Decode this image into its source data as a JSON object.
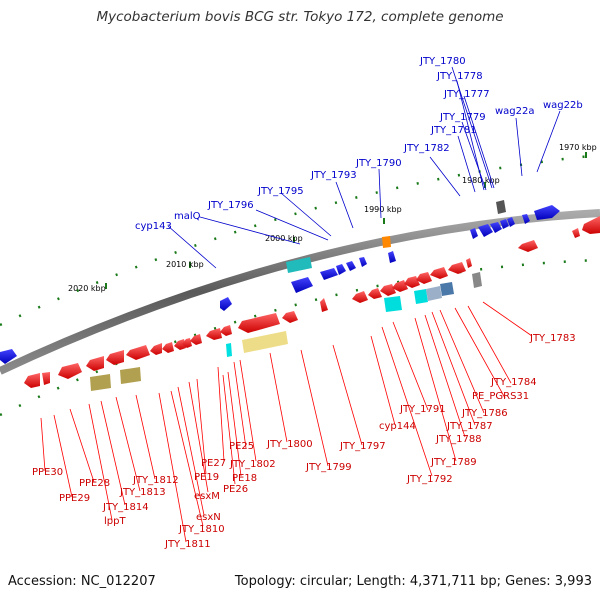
{
  "title": "Mycobacterium bovis BCG str. Tokyo 172, complete genome",
  "footer": {
    "accession": "Accession: NC_012207",
    "topology": "Topology: circular; Length: 4,371,711 bp; Genes: 3,993"
  },
  "colors": {
    "backbone": "#777777",
    "plus_strand": "#0000cc",
    "minus_strand": "#dd0000",
    "tick": "#1a7a1a",
    "label_plus": "#0000cc",
    "label_minus": "#cc0000"
  },
  "scale_labels": [
    "2020 kbp",
    "2010 kbp",
    "2000 kbp",
    "1990 kbp",
    "1980 kbp",
    "1970 kbp"
  ],
  "labels_plus": [
    "JTY_1780",
    "JTY_1778",
    "JTY_1777",
    "JTY_1779",
    "JTY_1781",
    "JTY_1782",
    "wag22a",
    "wag22b",
    "JTY_1790",
    "JTY_1793",
    "JTY_1795",
    "JTY_1796",
    "malQ",
    "cyp143"
  ],
  "labels_minus": [
    "JTY_1783",
    "JTY_1784",
    "PE_PGRS31",
    "JTY_1786",
    "JTY_1787",
    "JTY_1788",
    "JTY_1789",
    "JTY_1791",
    "cyp144",
    "JTY_1792",
    "JTY_1797",
    "JTY_1799",
    "JTY_1800",
    "JTY_1802",
    "PE25",
    "PE27",
    "PE18",
    "PE26",
    "PE19",
    "esxM",
    "esxN",
    "JTY_1810",
    "JTY_1811",
    "JTY_1812",
    "JTY_1813",
    "JTY_1814",
    "lppT",
    "PPE28",
    "PPE29",
    "PPE30"
  ]
}
